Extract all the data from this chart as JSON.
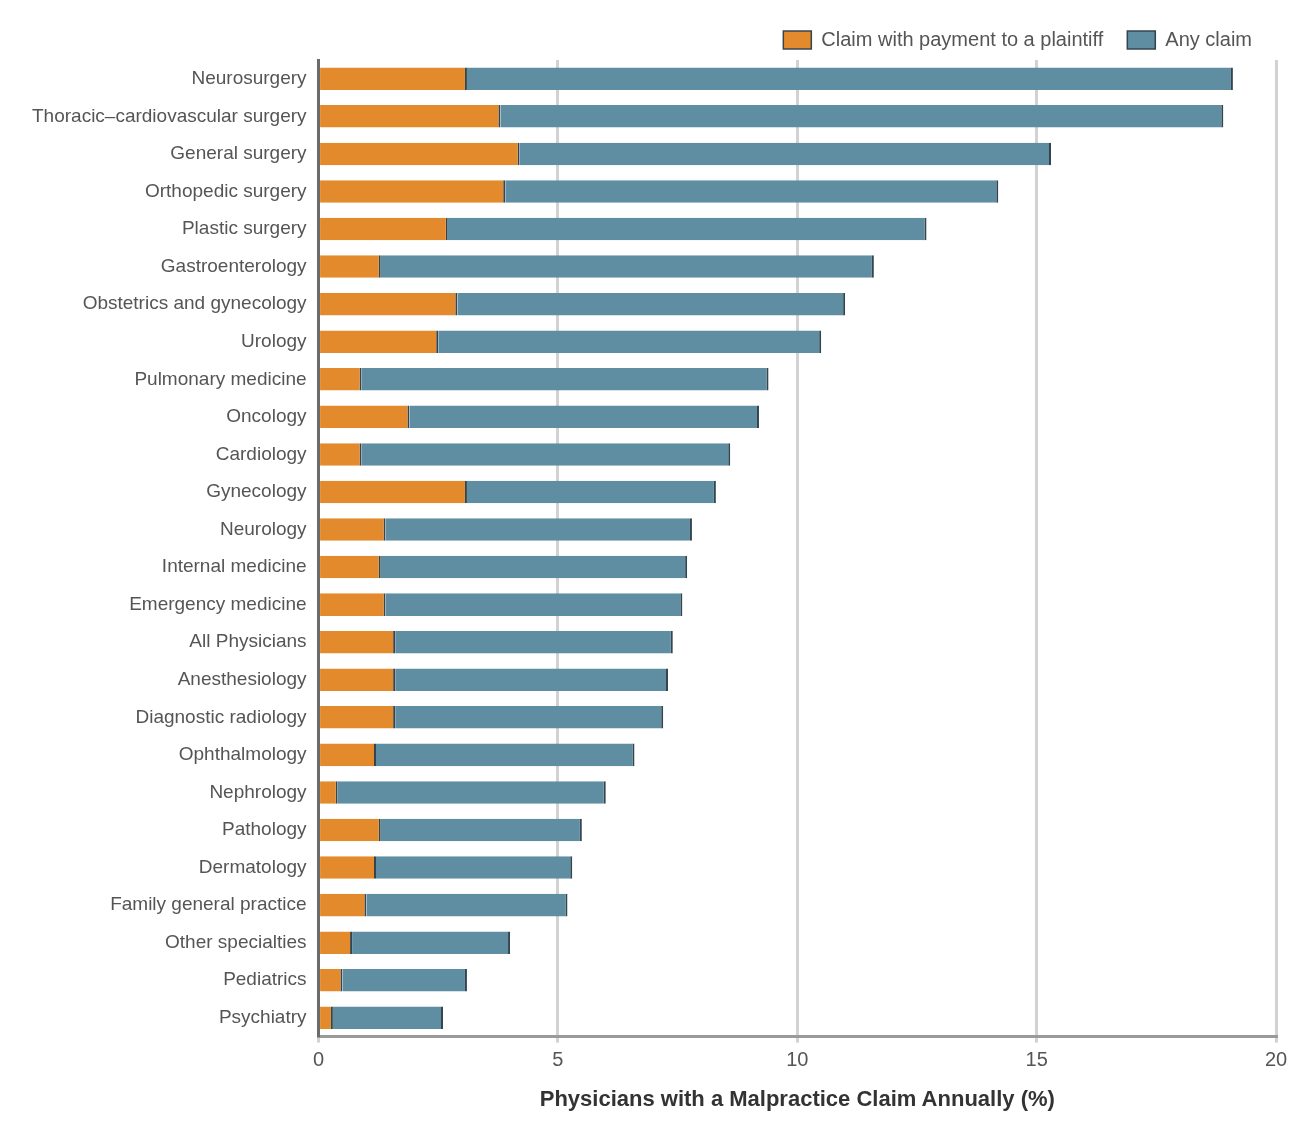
{
  "chart_data": {
    "type": "bar",
    "orientation": "horizontal",
    "stacked": true,
    "categories": [
      "Neurosurgery",
      "Thoracic–cardiovascular surgery",
      "General surgery",
      "Orthopedic surgery",
      "Plastic surgery",
      "Gastroenterology",
      "Obstetrics and gynecology",
      "Urology",
      "Pulmonary medicine",
      "Oncology",
      "Cardiology",
      "Gynecology",
      "Neurology",
      "Internal medicine",
      "Emergency medicine",
      "All Physicians",
      "Anesthesiology",
      "Diagnostic radiology",
      "Ophthalmology",
      "Nephrology",
      "Pathology",
      "Dermatology",
      "Family general practice",
      "Other specialties",
      "Pediatrics",
      "Psychiatry"
    ],
    "series": [
      {
        "name": "Claim with payment to a plaintiff",
        "color": "#e38a2c",
        "values": [
          3.1,
          3.8,
          4.2,
          3.9,
          2.7,
          1.3,
          2.9,
          2.5,
          0.9,
          1.9,
          0.9,
          3.1,
          1.4,
          1.3,
          1.4,
          1.6,
          1.6,
          1.6,
          1.2,
          0.4,
          1.3,
          1.2,
          1.0,
          0.7,
          0.5,
          0.3
        ]
      },
      {
        "name": "Any claim",
        "color": "#5f8da2",
        "values": [
          16.0,
          15.1,
          11.1,
          10.3,
          10.0,
          10.3,
          8.1,
          8.0,
          8.5,
          7.3,
          7.7,
          5.2,
          6.4,
          6.4,
          6.2,
          5.8,
          5.7,
          5.6,
          5.4,
          5.6,
          4.2,
          4.1,
          4.2,
          3.3,
          2.6,
          2.3
        ]
      }
    ],
    "xlim": [
      0,
      20
    ],
    "xticks": [
      0,
      5,
      10,
      15,
      20
    ],
    "xlabel": "Physicians with a Malpractice Claim Annually (%)",
    "grid": "x",
    "legend": "top right"
  }
}
